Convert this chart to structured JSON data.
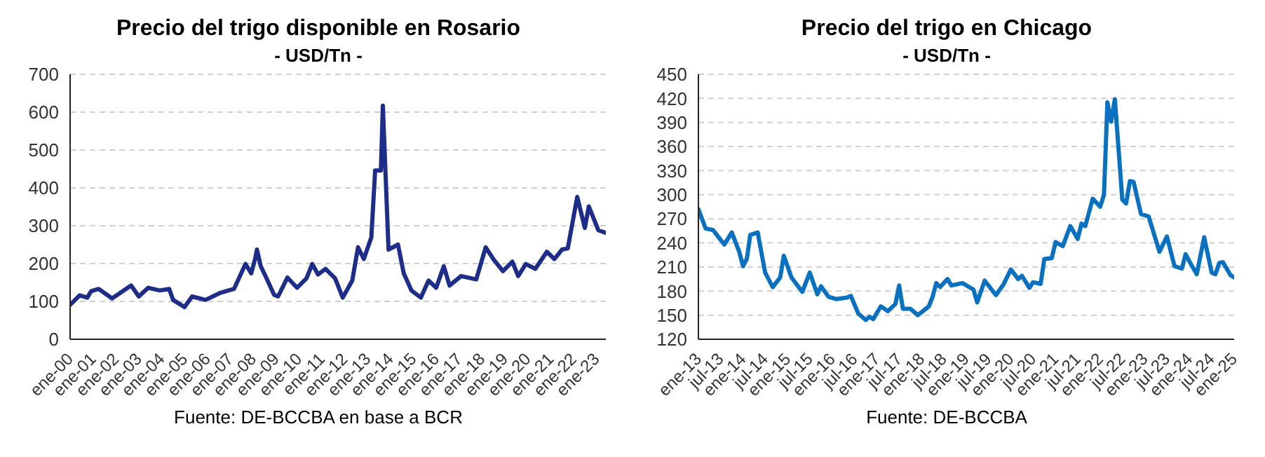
{
  "chart_data": [
    {
      "type": "line",
      "title": "Precio del trigo disponible en Rosario",
      "subtitle": "- USD/Tn -",
      "annotations": [
        "Fuente: DE-BCCBA en base a BCR"
      ],
      "x": [
        "2000-01",
        "2000-06",
        "2000-10",
        "2000-12",
        "2001-04",
        "2001-11",
        "2002-09",
        "2003-01",
        "2003-06",
        "2003-12",
        "2004-05",
        "2004-07",
        "2005-01",
        "2005-05",
        "2005-12",
        "2006-08",
        "2007-03",
        "2007-09",
        "2007-12",
        "2008-02",
        "2008-03",
        "2008-05",
        "2008-08",
        "2008-12",
        "2009-02",
        "2009-07",
        "2009-12",
        "2010-05",
        "2010-08",
        "2010-11",
        "2011-03",
        "2011-08",
        "2011-12",
        "2012-05",
        "2012-08",
        "2012-11",
        "2013-03",
        "2013-05",
        "2013-08",
        "2013-09",
        "2013-12",
        "2014-05",
        "2014-08",
        "2014-12",
        "2015-05",
        "2015-09",
        "2016-01",
        "2016-05",
        "2016-08",
        "2017-02",
        "2017-10",
        "2018-03",
        "2018-07",
        "2018-12",
        "2019-05",
        "2019-08",
        "2019-12",
        "2020-05",
        "2020-11",
        "2021-03",
        "2021-07",
        "2021-10",
        "2022-03",
        "2022-07",
        "2022-09",
        "2023-02",
        "2023-06"
      ],
      "series": [
        {
          "color": "#1f2d8a",
          "values": [
            91,
            116,
            110,
            127,
            133,
            108,
            142,
            113,
            136,
            129,
            133,
            104,
            85,
            113,
            104,
            123,
            133,
            199,
            174,
            212,
            237,
            193,
            161,
            117,
            113,
            163,
            136,
            161,
            199,
            171,
            186,
            161,
            110,
            155,
            243,
            212,
            269,
            446,
            446,
            617,
            237,
            250,
            174,
            129,
            110,
            155,
            136,
            193,
            142,
            167,
            158,
            243,
            212,
            180,
            205,
            167,
            199,
            186,
            231,
            212,
            237,
            240,
            376,
            294,
            351,
            288,
            281
          ]
        }
      ],
      "xlim": [
        "2000-01",
        "2023-06"
      ],
      "xticks": [
        {
          "value": "2000-01",
          "label": "ene-00"
        },
        {
          "value": "2001-01",
          "label": "ene-01"
        },
        {
          "value": "2002-01",
          "label": "ene-02"
        },
        {
          "value": "2003-01",
          "label": "ene-03"
        },
        {
          "value": "2004-01",
          "label": "ene-04"
        },
        {
          "value": "2005-01",
          "label": "ene-05"
        },
        {
          "value": "2006-01",
          "label": "ene-06"
        },
        {
          "value": "2007-01",
          "label": "ene-07"
        },
        {
          "value": "2008-01",
          "label": "ene-08"
        },
        {
          "value": "2009-01",
          "label": "ene-09"
        },
        {
          "value": "2010-01",
          "label": "ene-10"
        },
        {
          "value": "2011-01",
          "label": "ene-11"
        },
        {
          "value": "2012-01",
          "label": "ene-12"
        },
        {
          "value": "2013-01",
          "label": "ene-13"
        },
        {
          "value": "2014-01",
          "label": "ene-14"
        },
        {
          "value": "2015-01",
          "label": "ene-15"
        },
        {
          "value": "2016-01",
          "label": "ene-16"
        },
        {
          "value": "2017-01",
          "label": "ene-17"
        },
        {
          "value": "2018-01",
          "label": "ene-18"
        },
        {
          "value": "2019-01",
          "label": "ene-19"
        },
        {
          "value": "2020-01",
          "label": "ene-20"
        },
        {
          "value": "2021-01",
          "label": "ene-21"
        },
        {
          "value": "2022-01",
          "label": "ene-22"
        },
        {
          "value": "2023-01",
          "label": "ene-23"
        }
      ],
      "ylim": [
        0,
        700
      ],
      "yticks": [
        0,
        100,
        200,
        300,
        400,
        500,
        600,
        700
      ],
      "grid": "y",
      "legend": false,
      "marker": "none",
      "line_style": "solid"
    },
    {
      "type": "line",
      "title": "Precio del trigo en Chicago",
      "subtitle": "- USD/Tn -",
      "annotations": [
        "Fuente: DE-BCCBA"
      ],
      "x": [
        "2013-01",
        "2013-03",
        "2013-05",
        "2013-08",
        "2013-10",
        "2013-12",
        "2014-01",
        "2014-02",
        "2014-03",
        "2014-05",
        "2014-07",
        "2014-09",
        "2014-11",
        "2014-12",
        "2015-02",
        "2015-04",
        "2015-05",
        "2015-07",
        "2015-09",
        "2015-10",
        "2015-12",
        "2016-02",
        "2016-05",
        "2016-06",
        "2016-08",
        "2016-10",
        "2016-11",
        "2016-12",
        "2017-02",
        "2017-04",
        "2017-06",
        "2017-07",
        "2017-08",
        "2017-10",
        "2017-12",
        "2018-03",
        "2018-04",
        "2018-05",
        "2018-06",
        "2018-08",
        "2018-09",
        "2018-12",
        "2019-03",
        "2019-04",
        "2019-06",
        "2019-09",
        "2019-11",
        "2020-01",
        "2020-03",
        "2020-04",
        "2020-06",
        "2020-07",
        "2020-09",
        "2020-10",
        "2020-12",
        "2021-01",
        "2021-03",
        "2021-05",
        "2021-07",
        "2021-08",
        "2021-09",
        "2021-11",
        "2022-01",
        "2022-02",
        "2022-03",
        "2022-04",
        "2022-05",
        "2022-07",
        "2022-08",
        "2022-09",
        "2022-10",
        "2022-12",
        "2023-02",
        "2023-05",
        "2023-07",
        "2023-09",
        "2023-11",
        "2023-12",
        "2024-01",
        "2024-03",
        "2024-05",
        "2024-07",
        "2024-08",
        "2024-09",
        "2024-10",
        "2024-12",
        "2025-01"
      ],
      "series": [
        {
          "color": "#0a70c0",
          "values": [
            282,
            258,
            256,
            238,
            253,
            229,
            211,
            220,
            250,
            253,
            203,
            185,
            197,
            224,
            197,
            185,
            179,
            203,
            176,
            186,
            173,
            170,
            172,
            174,
            152,
            144,
            148,
            145,
            161,
            155,
            164,
            187,
            158,
            158,
            150,
            161,
            173,
            190,
            185,
            195,
            187,
            190,
            182,
            166,
            193,
            175,
            188,
            207,
            195,
            199,
            184,
            191,
            189,
            220,
            221,
            241,
            236,
            261,
            245,
            264,
            261,
            295,
            285,
            300,
            415,
            391,
            419,
            294,
            289,
            317,
            316,
            276,
            273,
            229,
            248,
            211,
            208,
            226,
            217,
            201,
            247,
            203,
            201,
            215,
            216,
            200,
            197
          ]
        }
      ],
      "xlim": [
        "2013-01",
        "2025-01"
      ],
      "xticks": [
        {
          "value": "2013-01",
          "label": "ene-13"
        },
        {
          "value": "2013-07",
          "label": "jul-13"
        },
        {
          "value": "2014-01",
          "label": "ene-14"
        },
        {
          "value": "2014-07",
          "label": "jul-14"
        },
        {
          "value": "2015-01",
          "label": "ene-15"
        },
        {
          "value": "2015-07",
          "label": "jul-15"
        },
        {
          "value": "2016-01",
          "label": "ene-16"
        },
        {
          "value": "2016-07",
          "label": "jul-16"
        },
        {
          "value": "2017-01",
          "label": "ene-17"
        },
        {
          "value": "2017-07",
          "label": "jul-17"
        },
        {
          "value": "2018-01",
          "label": "ene-18"
        },
        {
          "value": "2018-07",
          "label": "jul-18"
        },
        {
          "value": "2019-01",
          "label": "ene-19"
        },
        {
          "value": "2019-07",
          "label": "jul-19"
        },
        {
          "value": "2020-01",
          "label": "ene-20"
        },
        {
          "value": "2020-07",
          "label": "jul-20"
        },
        {
          "value": "2021-01",
          "label": "ene-21"
        },
        {
          "value": "2021-07",
          "label": "jul-21"
        },
        {
          "value": "2022-01",
          "label": "ene-22"
        },
        {
          "value": "2022-07",
          "label": "jul-22"
        },
        {
          "value": "2023-01",
          "label": "ene-23"
        },
        {
          "value": "2023-07",
          "label": "jul-23"
        },
        {
          "value": "2024-01",
          "label": "ene-24"
        },
        {
          "value": "2024-07",
          "label": "jul-24"
        },
        {
          "value": "2025-01",
          "label": "ene-25"
        }
      ],
      "ylim": [
        120,
        450
      ],
      "yticks": [
        120,
        150,
        180,
        210,
        240,
        270,
        300,
        330,
        360,
        390,
        420,
        450
      ],
      "grid": "y",
      "legend": false,
      "marker": "none",
      "line_style": "solid"
    }
  ]
}
